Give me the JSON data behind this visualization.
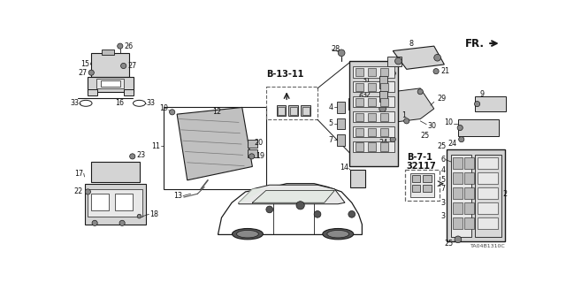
{
  "bg_color": "#ffffff",
  "diagram_code": "TA04B1310C",
  "fr_label": "FR.",
  "b_13_11_label": "B-13-11",
  "b_7_1_label": "B-7-1",
  "b_7_1_num": "32117",
  "line_color": "#1a1a1a",
  "gray_dark": "#555555",
  "gray_mid": "#888888",
  "gray_light": "#bbbbbb",
  "gray_fill": "#d4d4d4",
  "gray_lighter": "#e8e8e8",
  "dashed_color": "#666666",
  "text_fs": 5.8,
  "bold_fs": 7.0
}
